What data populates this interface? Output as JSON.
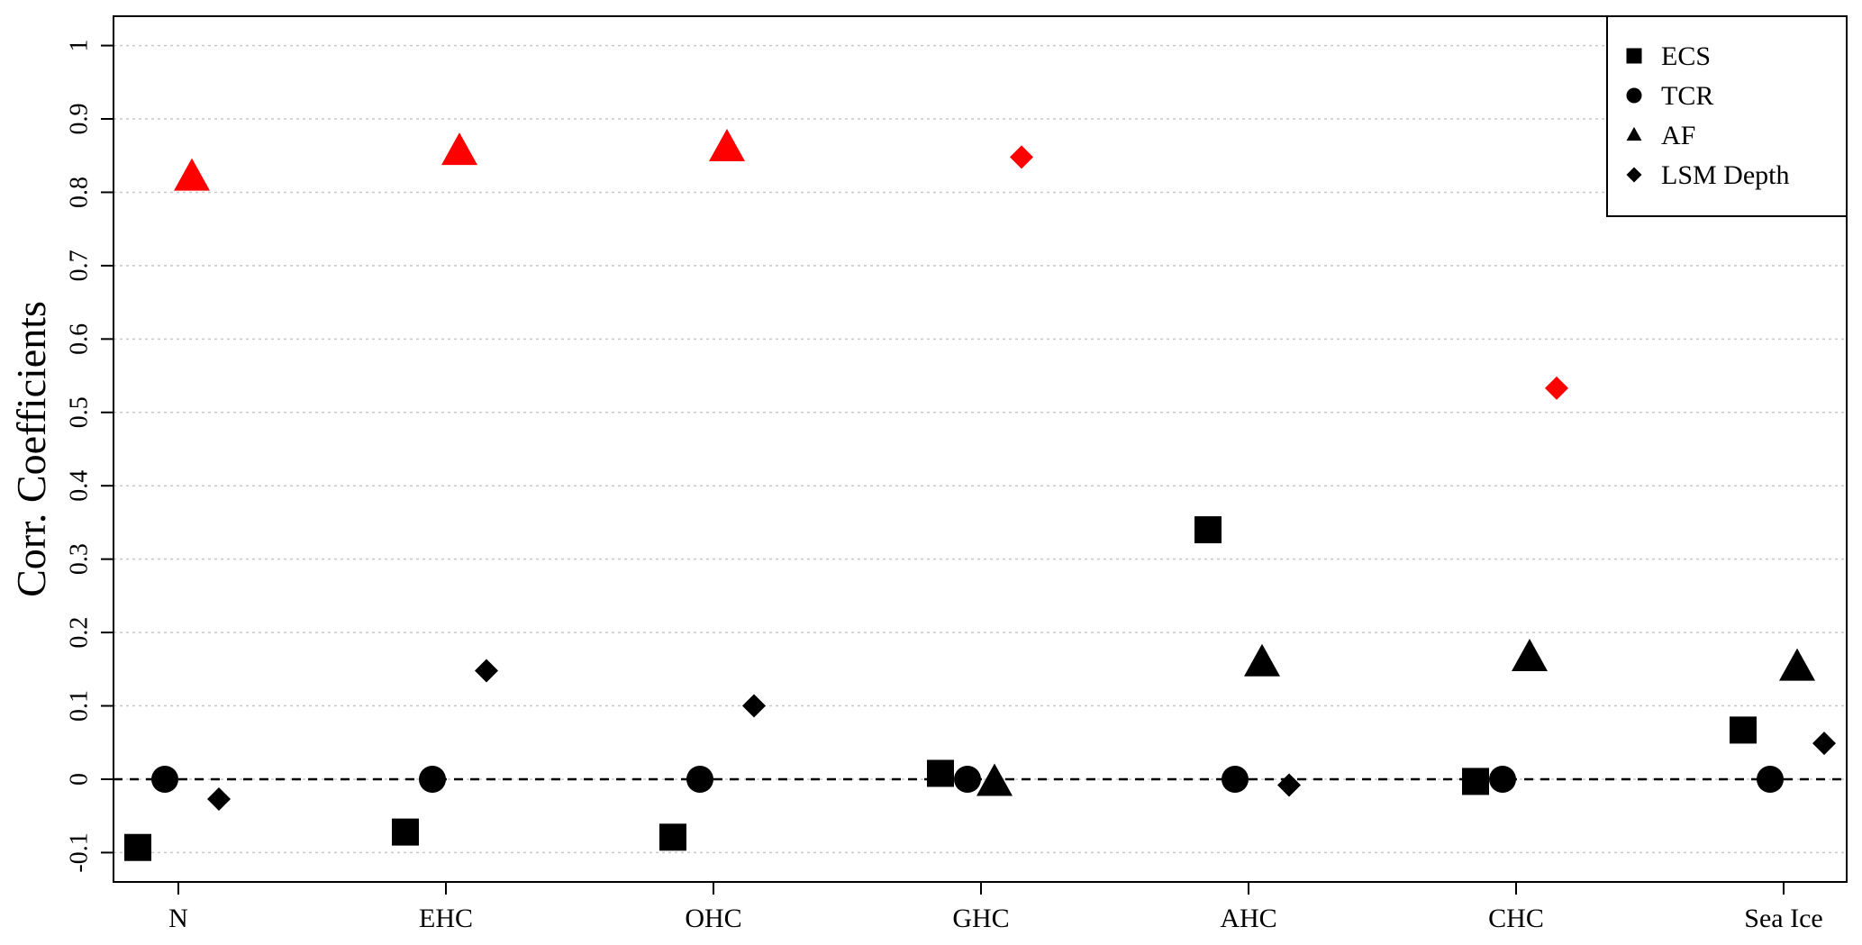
{
  "chart_data": {
    "type": "scatter",
    "ylabel": "Corr. Coefficients",
    "ylim": [
      -0.14,
      1.04
    ],
    "yticks": [
      "-0.1",
      "0",
      "0.1",
      "0.2",
      "0.3",
      "0.4",
      "0.5",
      "0.6",
      "0.7",
      "0.8",
      "0.9",
      "1"
    ],
    "categories": [
      "N",
      "EHC",
      "OHC",
      "GHC",
      "AHC",
      "CHC",
      "Sea Ice"
    ],
    "grid": true,
    "reference_line": 0,
    "legend_position": "top-right",
    "colors": {
      "default": "#000000",
      "highlight": "#ff0000"
    },
    "series": [
      {
        "name": "ECS",
        "marker": "square",
        "values": [
          -0.093,
          -0.072,
          -0.079,
          0.008,
          0.34,
          -0.003,
          0.067
        ],
        "highlight": [
          false,
          false,
          false,
          false,
          false,
          false,
          false
        ]
      },
      {
        "name": "TCR",
        "marker": "circle",
        "values": [
          0.0,
          0.0,
          0.0,
          0.0,
          0.0,
          0.0,
          0.0
        ],
        "highlight": [
          false,
          false,
          false,
          false,
          false,
          false,
          false
        ]
      },
      {
        "name": "AF",
        "marker": "triangle",
        "values": [
          0.82,
          0.855,
          0.86,
          -0.005,
          0.158,
          0.165,
          0.152
        ],
        "highlight": [
          true,
          true,
          true,
          false,
          false,
          false,
          false
        ]
      },
      {
        "name": "LSM Depth",
        "marker": "diamond",
        "values": [
          -0.027,
          0.148,
          0.1,
          0.848,
          -0.008,
          0.533,
          0.049
        ],
        "highlight": [
          false,
          false,
          false,
          true,
          false,
          true,
          false
        ]
      }
    ]
  }
}
